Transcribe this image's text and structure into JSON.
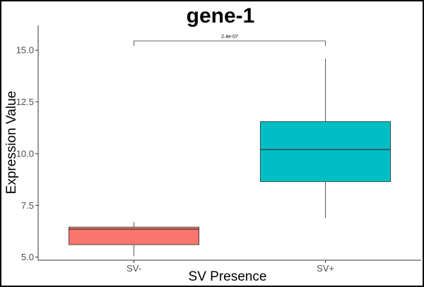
{
  "chart_data": {
    "type": "boxplot",
    "title": "gene-1",
    "xlabel": "SV Presence",
    "ylabel": "Expression Value",
    "categories": [
      "SV-",
      "SV+"
    ],
    "ylim": [
      4.85,
      16.2
    ],
    "yticks": [
      5.0,
      7.5,
      10.0,
      12.5,
      15.0
    ],
    "ytick_labels": [
      "5.0",
      "7.5",
      "10.0",
      "12.5",
      "15.0"
    ],
    "boxes": [
      {
        "category": "SV-",
        "min": 5.05,
        "q1": 5.6,
        "median": 6.35,
        "q3": 6.45,
        "max": 6.7,
        "color": "#F8766D"
      },
      {
        "category": "SV+",
        "min": 6.9,
        "q1": 8.65,
        "median": 10.2,
        "q3": 11.55,
        "max": 14.6,
        "color": "#00BFC4"
      }
    ],
    "significance": {
      "label": "2.4e-07",
      "y": 15.45
    },
    "grid": false
  }
}
